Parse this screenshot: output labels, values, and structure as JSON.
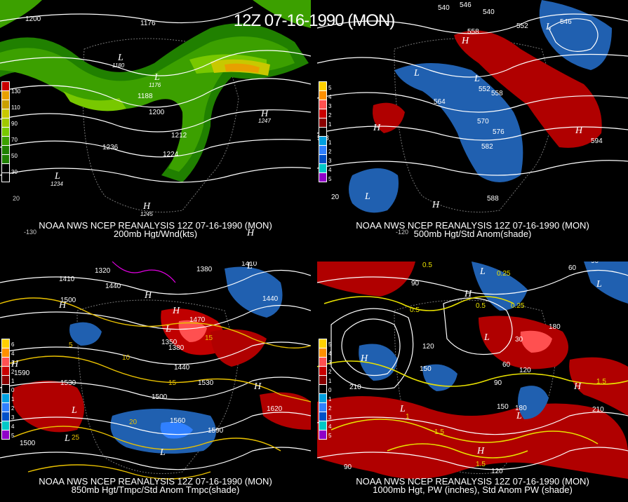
{
  "title": "12Z 07-16-1990 (MON)",
  "panels": [
    {
      "caption_line1": "NOAA NWS NCEP REANALYSIS 12Z 07-16-1990 (MON)",
      "caption_line2": "200mb Hgt/Wnd(kts)",
      "legend": [
        "130",
        "110",
        "90",
        "70",
        "50",
        "30"
      ],
      "legend_colors": [
        "#c80000",
        "#e8a000",
        "#c8c800",
        "#78c800",
        "#3ca000",
        "#208000"
      ],
      "labels": [
        "1200",
        "1176",
        "1188",
        "1200",
        "1212",
        "1224",
        "1236",
        "1180",
        "1176",
        "1247",
        "1234",
        "1245"
      ],
      "lon_labels": [
        "20",
        "-130"
      ]
    },
    {
      "caption_line1": "NOAA NWS NCEP REANALYSIS 12Z 07-16-1990 (MON)",
      "caption_line2": "500mb Hgt/Std Anom(shade)",
      "legend": [
        "5",
        "4",
        "3",
        "2",
        "1",
        "1",
        "2",
        "3",
        "4",
        "5"
      ],
      "legend_colors": [
        "#ffd000",
        "#ff9000",
        "#ff5050",
        "#c80000",
        "#880000",
        "#00a0e0",
        "#3080ff",
        "#0050c8",
        "#00c8c8",
        "#9000c8"
      ],
      "labels": [
        "540",
        "546",
        "540",
        "552",
        "546",
        "558",
        "564",
        "552",
        "558",
        "570",
        "576",
        "582",
        "588",
        "588",
        "594",
        "20"
      ],
      "lon_labels": [
        "20",
        "-120"
      ]
    },
    {
      "caption_line1": "NOAA NWS NCEP REANALYSIS 12Z 07-16-1990 (MON)",
      "caption_line2": "850mb Hgt/Tmpc/Std Anom Tmpc(shade)",
      "legend": [
        "6",
        "4",
        "3",
        "2",
        "1",
        "0",
        "1",
        "2",
        "3",
        "4",
        "5"
      ],
      "legend_colors": [
        "#ffd000",
        "#ff9000",
        "#ff5050",
        "#c80000",
        "#880000",
        "#000000",
        "#00a0e0",
        "#3080ff",
        "#0050c8",
        "#00c8c8",
        "#9000c8"
      ],
      "labels": [
        "1320",
        "1410",
        "1380",
        "1410",
        "1500",
        "1470",
        "1440",
        "1440",
        "1350",
        "1380",
        "1590",
        "1530",
        "1530",
        "1440",
        "1560",
        "1590",
        "1620",
        "1500",
        "1500",
        "15",
        "20",
        "25",
        "5",
        "10",
        "15"
      ],
      "lon_labels": []
    },
    {
      "caption_line1": "NOAA NWS NCEP REANALYSIS 12Z 07-16-1990 (MON)",
      "caption_line2": "1000mb Hgt, PW (inches), Std Anom PW (shade)",
      "legend": [
        "5",
        "4",
        "3",
        "2",
        "1",
        "0",
        "1",
        "2",
        "3",
        "4",
        "5"
      ],
      "legend_colors": [
        "#ffd000",
        "#ff9000",
        "#ff5050",
        "#c80000",
        "#880000",
        "#000000",
        "#00a0e0",
        "#3080ff",
        "#0050c8",
        "#00c8c8",
        "#9000c8"
      ],
      "labels": [
        "0.5",
        "90",
        "60",
        "90",
        "0.5",
        "0.25",
        "0.5",
        "0.25",
        "180",
        "120",
        "60",
        "30",
        "150",
        "120",
        "210",
        "150",
        "90",
        "210",
        "180",
        "1.5",
        "1",
        "1.5",
        "1.5",
        "90",
        "120"
      ],
      "lon_labels": []
    }
  ]
}
